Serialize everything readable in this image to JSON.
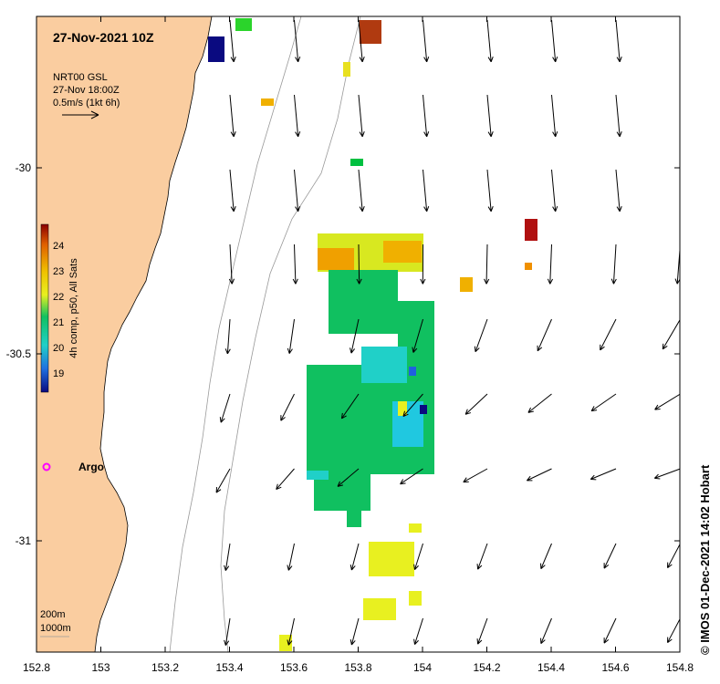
{
  "map": {
    "title": "27-Nov-2021 10Z",
    "legend": {
      "product": "NRT00 GSL",
      "time": "27-Nov 18:00Z",
      "scale": "0.5m/s (1kt 6h)"
    },
    "colorbar": {
      "label": "4h comp, p50, All Sats",
      "ticks": [
        "24",
        "23",
        "22",
        "21",
        "20",
        "19"
      ]
    },
    "argo_label": "Argo",
    "depth_contours": [
      "200m",
      "1000m"
    ],
    "credit": "© IMOS 01-Dec-2021 14:02 Hobart",
    "x_ticks": [
      "152.8",
      "153",
      "153.2",
      "153.4",
      "153.6",
      "153.8",
      "154",
      "154.2",
      "154.4",
      "154.6",
      "154.8"
    ],
    "y_ticks": [
      "-30",
      "-30.5",
      "-31"
    ],
    "colors": {
      "land": "#FACDA0",
      "sst_warm": "#B22222",
      "sst_mid": "#00C040",
      "sst_cool": "#00C8D0",
      "argo": "#FF00FF"
    }
  }
}
